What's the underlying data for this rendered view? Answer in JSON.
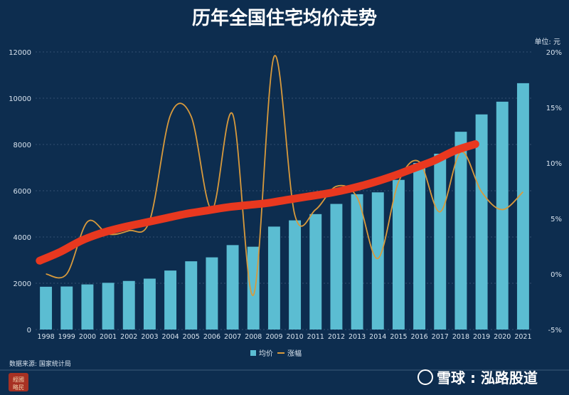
{
  "chart_data": {
    "type": "bar",
    "title": "历年全国住宅均价走势",
    "unit_label": "单位: 元",
    "categories": [
      "1998",
      "1999",
      "2000",
      "2001",
      "2002",
      "2003",
      "2004",
      "2005",
      "2006",
      "2007",
      "2008",
      "2009",
      "2010",
      "2011",
      "2012",
      "2013",
      "2014",
      "2015",
      "2016",
      "2017",
      "2018",
      "2019",
      "2020",
      "2021"
    ],
    "series": [
      {
        "name": "均价",
        "axis": "left",
        "type": "bar",
        "values": [
          1850,
          1860,
          1950,
          2020,
          2100,
          2200,
          2550,
          2950,
          3120,
          3650,
          3580,
          4450,
          4720,
          4990,
          5430,
          5850,
          5930,
          6470,
          7200,
          7600,
          8550,
          9300,
          9850,
          10650
        ]
      },
      {
        "name": "涨幅",
        "axis": "right",
        "type": "line",
        "values": [
          0.0,
          0.0,
          4.7,
          3.6,
          3.9,
          4.8,
          14.3,
          14.2,
          5.8,
          14.4,
          -1.9,
          19.6,
          5.3,
          5.8,
          7.9,
          6.9,
          1.4,
          8.3,
          10.1,
          5.6,
          11.0,
          7.4,
          5.8,
          7.4
        ]
      }
    ],
    "trend_line": {
      "color": "#e8381f",
      "values": [
        1.2,
        2.0,
        3.0,
        3.7,
        4.2,
        4.6,
        5.0,
        5.4,
        5.7,
        6.0,
        6.2,
        6.4,
        6.7,
        7.0,
        7.3,
        7.7,
        8.2,
        8.8,
        9.5,
        10.2,
        11.1,
        11.7,
        null,
        null
      ]
    },
    "y_left": {
      "min": 0,
      "max": 12000,
      "ticks": [
        "0",
        "2000",
        "4000",
        "6000",
        "8000",
        "10000",
        "12000"
      ]
    },
    "y_right": {
      "min": -5,
      "max": 20,
      "ticks": [
        "-5%",
        "0%",
        "5%",
        "10%",
        "15%",
        "20%"
      ]
    },
    "grid": true,
    "legend": {
      "position": "bottom",
      "items": [
        "均价",
        "涨幅"
      ]
    },
    "colors": {
      "background": "#0d2d4f",
      "bar": "#5bbdd2",
      "line": "#d89a3c",
      "trend": "#e8381f",
      "text": "#d8e3ee"
    }
  },
  "footer": {
    "source": "数据来源: 国家统计局",
    "watermark": "雪球 : 泓路股道",
    "logo_text": "經國 略民"
  }
}
